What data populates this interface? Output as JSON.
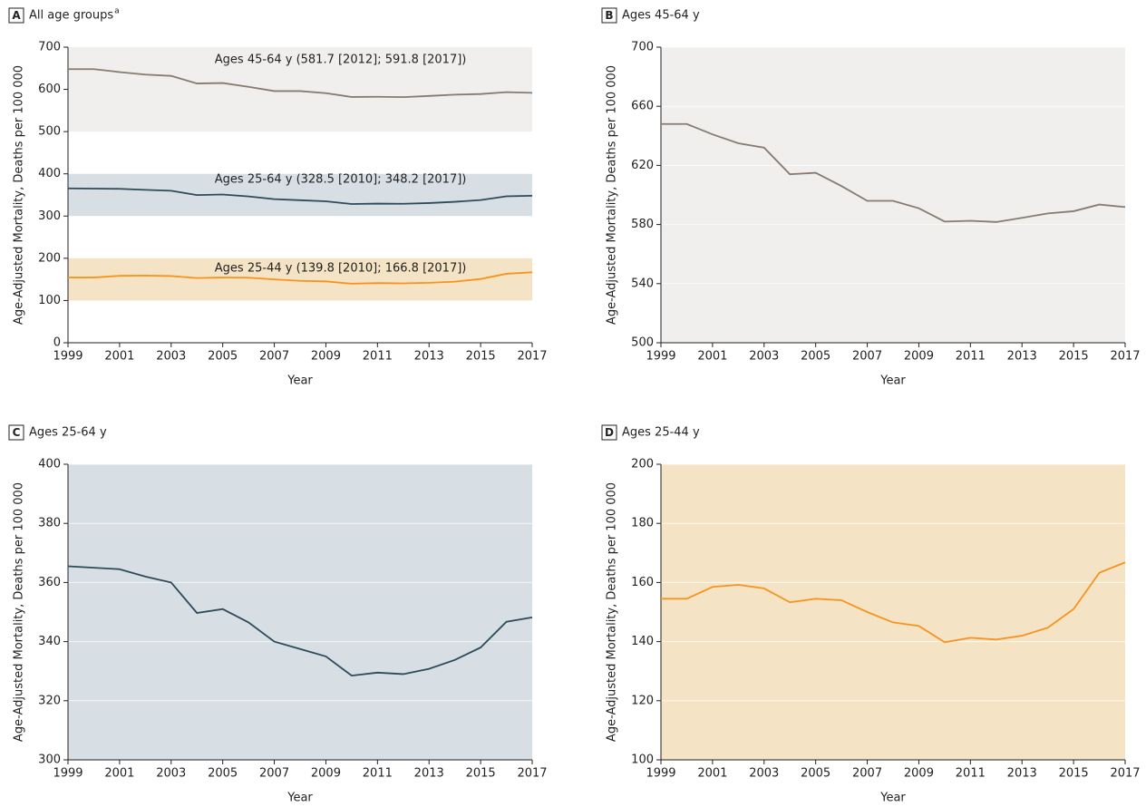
{
  "chart_data": [
    {
      "type": "line",
      "label": "A",
      "title": "All age groups",
      "title_note": "a",
      "xlabel": "Year",
      "ylabel": "Age-Adjusted Mortality, Deaths per 100 000",
      "x": [
        1999,
        2000,
        2001,
        2002,
        2003,
        2004,
        2005,
        2006,
        2007,
        2008,
        2009,
        2010,
        2011,
        2012,
        2013,
        2014,
        2015,
        2016,
        2017
      ],
      "xlim": [
        1999,
        2017
      ],
      "xticks": [
        1999,
        2001,
        2003,
        2005,
        2007,
        2009,
        2011,
        2013,
        2015,
        2017
      ],
      "ylim": [
        0,
        700
      ],
      "yticks": [
        0,
        100,
        200,
        300,
        400,
        500,
        600,
        700
      ],
      "grid": false,
      "background": "#ffffff",
      "series": [
        {
          "name": "Ages 45-64 y (581.7 [2012]; 591.8 [2017])",
          "color": "#857b71",
          "band": [
            500,
            700
          ],
          "band_color": "#f0efed",
          "values": [
            648,
            648,
            641,
            635,
            632,
            614,
            615,
            606,
            596,
            596,
            591,
            582,
            582.5,
            581.7,
            584.5,
            587.5,
            589,
            593.5,
            591.8
          ]
        },
        {
          "name": "Ages 25-64 y (328.5 [2010]; 348.2 [2017])",
          "color": "#2d4a5a",
          "band": [
            300,
            400
          ],
          "band_color": "#d7dfe4",
          "values": [
            365.5,
            365,
            364.5,
            362,
            360,
            349.7,
            351,
            346.5,
            340,
            337.5,
            335,
            328.5,
            329.5,
            329,
            330.8,
            333.8,
            338,
            346.7,
            348.2
          ]
        },
        {
          "name": "Ages 25-44 y (139.8 [2010]; 166.8 [2017])",
          "color": "#f7941d",
          "band": [
            100,
            200
          ],
          "band_color": "#f5e3c5",
          "values": [
            154.5,
            154.5,
            158.5,
            159.2,
            158,
            153.3,
            154.5,
            154,
            150,
            146.5,
            145.3,
            139.8,
            141.3,
            140.7,
            142,
            144.7,
            151,
            163.3,
            166.8
          ]
        }
      ]
    },
    {
      "type": "line",
      "label": "B",
      "title": "Ages 45-64 y",
      "xlabel": "Year",
      "ylabel": "Age-Adjusted Mortality, Deaths per 100 000",
      "x": [
        1999,
        2000,
        2001,
        2002,
        2003,
        2004,
        2005,
        2006,
        2007,
        2008,
        2009,
        2010,
        2011,
        2012,
        2013,
        2014,
        2015,
        2016,
        2017
      ],
      "xlim": [
        1999,
        2017
      ],
      "xticks": [
        1999,
        2001,
        2003,
        2005,
        2007,
        2009,
        2011,
        2013,
        2015,
        2017
      ],
      "ylim": [
        500,
        700
      ],
      "yticks": [
        500,
        540,
        580,
        620,
        660,
        700
      ],
      "grid": true,
      "background": "#f0efed",
      "series": [
        {
          "color": "#857b71",
          "values": [
            648,
            648,
            641,
            635,
            632,
            614,
            615,
            606,
            596,
            596,
            591,
            582,
            582.5,
            581.7,
            584.5,
            587.5,
            589,
            593.5,
            591.8
          ]
        }
      ]
    },
    {
      "type": "line",
      "label": "C",
      "title": "Ages 25-64 y",
      "xlabel": "Year",
      "ylabel": "Age-Adjusted Mortality, Deaths per 100 000",
      "x": [
        1999,
        2000,
        2001,
        2002,
        2003,
        2004,
        2005,
        2006,
        2007,
        2008,
        2009,
        2010,
        2011,
        2012,
        2013,
        2014,
        2015,
        2016,
        2017
      ],
      "xlim": [
        1999,
        2017
      ],
      "xticks": [
        1999,
        2001,
        2003,
        2005,
        2007,
        2009,
        2011,
        2013,
        2015,
        2017
      ],
      "ylim": [
        300,
        400
      ],
      "yticks": [
        300,
        320,
        340,
        360,
        380,
        400
      ],
      "grid": true,
      "background": "#d7dfe4",
      "series": [
        {
          "color": "#2d4a5a",
          "values": [
            365.5,
            365,
            364.5,
            362,
            360,
            349.7,
            351,
            346.5,
            340,
            337.5,
            335,
            328.5,
            329.5,
            329,
            330.8,
            333.8,
            338,
            346.7,
            348.2
          ]
        }
      ]
    },
    {
      "type": "line",
      "label": "D",
      "title": "Ages 25-44 y",
      "xlabel": "Year",
      "ylabel": "Age-Adjusted Mortality, Deaths per 100 000",
      "x": [
        1999,
        2000,
        2001,
        2002,
        2003,
        2004,
        2005,
        2006,
        2007,
        2008,
        2009,
        2010,
        2011,
        2012,
        2013,
        2014,
        2015,
        2016,
        2017
      ],
      "xlim": [
        1999,
        2017
      ],
      "xticks": [
        1999,
        2001,
        2003,
        2005,
        2007,
        2009,
        2011,
        2013,
        2015,
        2017
      ],
      "ylim": [
        100,
        200
      ],
      "yticks": [
        100,
        120,
        140,
        160,
        180,
        200
      ],
      "grid": true,
      "background": "#f5e3c5",
      "series": [
        {
          "color": "#f7941d",
          "values": [
            154.5,
            154.5,
            158.5,
            159.2,
            158,
            153.3,
            154.5,
            154,
            150,
            146.5,
            145.3,
            139.8,
            141.3,
            140.7,
            142,
            144.7,
            151,
            163.3,
            166.8
          ]
        }
      ]
    }
  ]
}
